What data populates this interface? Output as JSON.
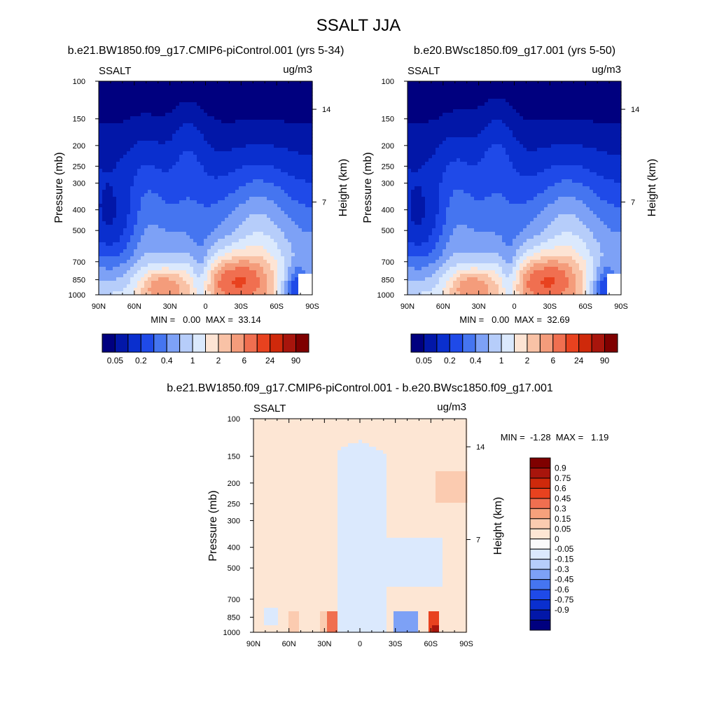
{
  "figure": {
    "title": "SSALT JJA"
  },
  "colors": {
    "abs_scale": [
      "#00007f",
      "#0217a8",
      "#0a2fce",
      "#1f4ae8",
      "#4575f0",
      "#7da1f6",
      "#b6cdfa",
      "#dbe9fd",
      "#fde4d4",
      "#f9c2a6",
      "#f49c7b",
      "#f06f50",
      "#e8421f",
      "#cf290b",
      "#a8150c",
      "#7f0000"
    ],
    "diff_scale": [
      "#00007f",
      "#0217a8",
      "#0a2fce",
      "#1f4ae8",
      "#4575f0",
      "#7da1f6",
      "#b6cdfa",
      "#dbe9fd",
      "#fbfbfb",
      "#fde6d4",
      "#fbcbb0",
      "#f6a17c",
      "#f06f50",
      "#e8421f",
      "#cf290b",
      "#a8150c",
      "#7f0000"
    ]
  },
  "chart_data": [
    {
      "type": "heatmap",
      "title": "b.e21.BW1850.f09_g17.CMIP6-piControl.001 (yrs 5-34)",
      "left_label": "SSALT",
      "right_label": "ug/m3",
      "ylabel": "Pressure (mb)",
      "ylabel_right": "Height (km)",
      "y_ticks": [
        "100",
        "150",
        "200",
        "250",
        "300",
        "400",
        "500",
        "700",
        "850",
        "1000"
      ],
      "y_ticks_right": [
        "14",
        "7"
      ],
      "x_ticks": [
        "90N",
        "60N",
        "30N",
        "0",
        "30S",
        "60S",
        "90S"
      ],
      "stats": "MIN =   0.00  MAX =  33.14",
      "min": 0.0,
      "max": 33.14,
      "colorbar_labels": [
        "0.05",
        "0.2",
        "0.4",
        "1",
        "2",
        "6",
        "24",
        "90"
      ]
    },
    {
      "type": "heatmap",
      "title": "b.e20.BWsc1850.f09_g17.001 (yrs 5-50)",
      "left_label": "SSALT",
      "right_label": "ug/m3",
      "ylabel": "Pressure (mb)",
      "ylabel_right": "Height (km)",
      "y_ticks": [
        "100",
        "150",
        "200",
        "250",
        "300",
        "400",
        "500",
        "700",
        "850",
        "1000"
      ],
      "y_ticks_right": [
        "14",
        "7"
      ],
      "x_ticks": [
        "90N",
        "60N",
        "30N",
        "0",
        "30S",
        "60S",
        "90S"
      ],
      "stats": "MIN =   0.00  MAX =  32.69",
      "min": 0.0,
      "max": 32.69,
      "colorbar_labels": [
        "0.05",
        "0.2",
        "0.4",
        "1",
        "2",
        "6",
        "24",
        "90"
      ]
    },
    {
      "type": "heatmap",
      "title": "b.e21.BW1850.f09_g17.CMIP6-piControl.001 - b.e20.BWsc1850.f09_g17.001",
      "left_label": "SSALT",
      "right_label": "ug/m3",
      "ylabel": "Pressure (mb)",
      "ylabel_right": "Height (km)",
      "y_ticks": [
        "100",
        "150",
        "200",
        "250",
        "300",
        "400",
        "500",
        "700",
        "850",
        "1000"
      ],
      "y_ticks_right": [
        "14",
        "7"
      ],
      "x_ticks": [
        "90N",
        "60N",
        "30N",
        "0",
        "30S",
        "60S",
        "90S"
      ],
      "stats": "MIN =  -1.28  MAX =   1.19",
      "min": -1.28,
      "max": 1.19,
      "colorbar_labels": [
        "0.9",
        "0.75",
        "0.6",
        "0.45",
        "0.3",
        "0.15",
        "0.05",
        "0",
        "-0.05",
        "-0.15",
        "-0.3",
        "-0.45",
        "-0.6",
        "-0.75",
        "-0.9"
      ]
    }
  ]
}
